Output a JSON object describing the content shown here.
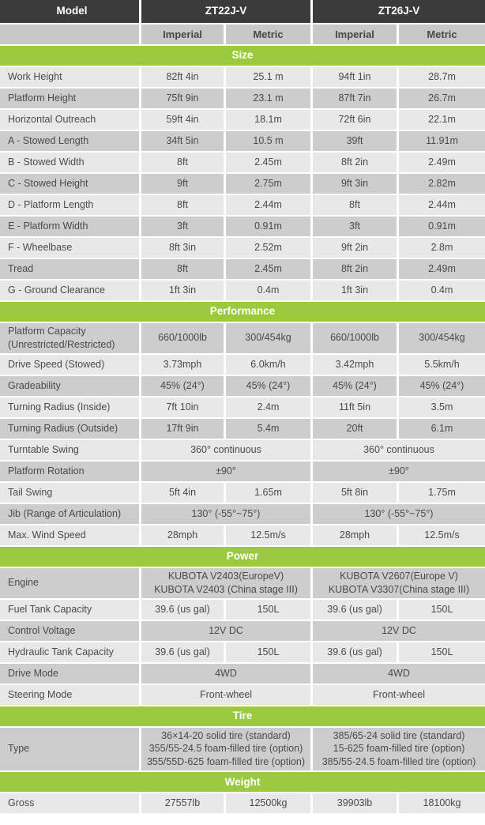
{
  "header": {
    "model_label": "Model",
    "models": [
      "ZT22J-V",
      "ZT26J-V"
    ],
    "unit_columns": [
      "Imperial",
      "Metric",
      "Imperial",
      "Metric"
    ]
  },
  "colors": {
    "header_bg": "#3b3b3b",
    "subheader_bg": "#c8c8c8",
    "section_band_bg": "#9bca3e",
    "row_light_bg": "#e8e8e8",
    "row_dark_bg": "#cdcdcd",
    "body_text": "#4a4a4a"
  },
  "sections": [
    {
      "title": "Size",
      "rows": [
        {
          "label": "Work Height",
          "cells": [
            "82ft 4in",
            "25.1 m",
            "94ft 1in",
            "28.7m"
          ]
        },
        {
          "label": "Platform Height",
          "cells": [
            "75ft 9in",
            "23.1 m",
            "87ft 7in",
            "26.7m"
          ]
        },
        {
          "label": "Horizontal Outreach",
          "cells": [
            "59ft 4in",
            "18.1m",
            "72ft 6in",
            "22.1m"
          ]
        },
        {
          "label": "A - Stowed Length",
          "cells": [
            "34ft 5in",
            "10.5 m",
            "39ft",
            "11.91m"
          ]
        },
        {
          "label": "B - Stowed Width",
          "cells": [
            "8ft",
            "2.45m",
            "8ft 2in",
            "2.49m"
          ]
        },
        {
          "label": "C - Stowed Height",
          "cells": [
            "9ft",
            "2.75m",
            "9ft 3in",
            "2.82m"
          ]
        },
        {
          "label": "D - Platform Length",
          "cells": [
            "8ft",
            "2.44m",
            "8ft",
            "2.44m"
          ]
        },
        {
          "label": "E - Platform Width",
          "cells": [
            "3ft",
            "0.91m",
            "3ft",
            "0.91m"
          ]
        },
        {
          "label": "F - Wheelbase",
          "cells": [
            "8ft 3in",
            "2.52m",
            "9ft 2in",
            "2.8m"
          ]
        },
        {
          "label": "Tread",
          "cells": [
            "8ft",
            "2.45m",
            "8ft 2in",
            "2.49m"
          ]
        },
        {
          "label": "G - Ground Clearance",
          "cells": [
            "1ft 3in",
            "0.4m",
            "1ft 3in",
            "0.4m"
          ]
        }
      ]
    },
    {
      "title": "Performance",
      "rows": [
        {
          "label": "Platform Capacity\n(Unrestricted/Restricted)",
          "cells": [
            "660/1000lb",
            "300/454kg",
            "660/1000lb",
            "300/454kg"
          ]
        },
        {
          "label": "Drive Speed (Stowed)",
          "cells": [
            "3.73mph",
            "6.0km/h",
            "3.42mph",
            "5.5km/h"
          ]
        },
        {
          "label": "Gradeability",
          "cells": [
            "45% (24°)",
            "45% (24°)",
            "45% (24°)",
            "45% (24°)"
          ]
        },
        {
          "label": "Turning Radius (Inside)",
          "cells": [
            "7ft 10in",
            "2.4m",
            "11ft 5in",
            "3.5m"
          ]
        },
        {
          "label": "Turning Radius (Outside)",
          "cells": [
            "17ft 9in",
            "5.4m",
            "20ft",
            "6.1m"
          ]
        },
        {
          "label": "Turntable Swing",
          "span2": true,
          "cells": [
            "360° continuous",
            "360° continuous"
          ]
        },
        {
          "label": "Platform Rotation",
          "span2": true,
          "cells": [
            "±90°",
            "±90°"
          ]
        },
        {
          "label": "Tail Swing",
          "cells": [
            "5ft 4in",
            "1.65m",
            "5ft 8in",
            "1.75m"
          ]
        },
        {
          "label": "Jib (Range of Articulation)",
          "span2": true,
          "cells": [
            "130° (-55°~75°)",
            "130° (-55°~75°)"
          ]
        },
        {
          "label": "Max. Wind Speed",
          "cells": [
            "28mph",
            "12.5m/s",
            "28mph",
            "12.5m/s"
          ]
        }
      ]
    },
    {
      "title": "Power",
      "rows": [
        {
          "label": "Engine",
          "span2": true,
          "cells": [
            "KUBOTA V2403(EuropeV)\nKUBOTA V2403 (China stage III)",
            "KUBOTA V2607(Europe V)\nKUBOTA V3307(China stage III)"
          ]
        },
        {
          "label": "Fuel Tank Capacity",
          "cells": [
            "39.6 (us gal)",
            "150L",
            "39.6 (us gal)",
            "150L"
          ]
        },
        {
          "label": "Control Voltage",
          "span2": true,
          "cells": [
            "12V DC",
            "12V DC"
          ]
        },
        {
          "label": "Hydraulic Tank Capacity",
          "cells": [
            "39.6 (us gal)",
            "150L",
            "39.6 (us gal)",
            "150L"
          ]
        },
        {
          "label": "Drive Mode",
          "span2": true,
          "cells": [
            "4WD",
            "4WD"
          ]
        },
        {
          "label": "Steering Mode",
          "span2": true,
          "cells": [
            "Front-wheel",
            "Front-wheel"
          ]
        }
      ]
    },
    {
      "title": "Tire",
      "rows": [
        {
          "label": "Type",
          "span2": true,
          "cells": [
            "36×14-20 solid tire (standard)\n355/55-24.5 foam-filled tire (option)\n355/55D-625 foam-filled tire (option)",
            "385/65-24 solid tire (standard)\n15-625 foam-filled tire (option)\n385/55-24.5 foam-filled tire (option)"
          ]
        }
      ]
    },
    {
      "title": "Weight",
      "rows": [
        {
          "label": "Gross",
          "cells": [
            "27557lb",
            "12500kg",
            "39903lb",
            "18100kg"
          ]
        }
      ]
    }
  ]
}
